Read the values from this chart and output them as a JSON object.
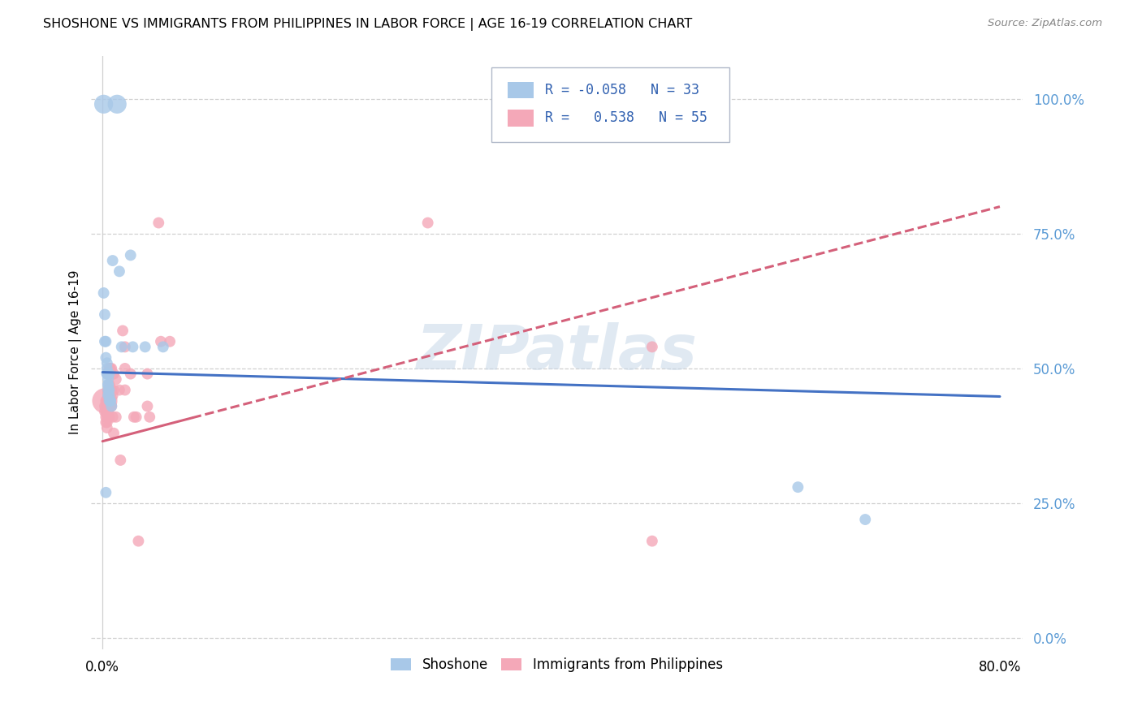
{
  "title": "SHOSHONE VS IMMIGRANTS FROM PHILIPPINES IN LABOR FORCE | AGE 16-19 CORRELATION CHART",
  "source": "Source: ZipAtlas.com",
  "ylabel": "In Labor Force | Age 16-19",
  "xlim": [
    -0.01,
    0.82
  ],
  "ylim": [
    -0.02,
    1.08
  ],
  "ytick_vals": [
    0.0,
    0.25,
    0.5,
    0.75,
    1.0
  ],
  "ytick_labels": [
    "0.0%",
    "25.0%",
    "50.0%",
    "75.0%",
    "100.0%"
  ],
  "xtick_vals": [
    0.0,
    0.1,
    0.2,
    0.3,
    0.4,
    0.5,
    0.6,
    0.7,
    0.8
  ],
  "xtick_labels": [
    "0.0%",
    "",
    "",
    "",
    "",
    "",
    "",
    "",
    "80.0%"
  ],
  "legend_R_blue": "-0.058",
  "legend_N_blue": "33",
  "legend_R_pink": "0.538",
  "legend_N_pink": "55",
  "blue_color": "#a8c8e8",
  "pink_color": "#f4a8b8",
  "trend_blue_color": "#4472c4",
  "trend_pink_color": "#d4607a",
  "blue_scatter": [
    [
      0.001,
      0.99
    ],
    [
      0.013,
      0.99
    ],
    [
      0.001,
      0.64
    ],
    [
      0.002,
      0.6
    ],
    [
      0.002,
      0.55
    ],
    [
      0.003,
      0.55
    ],
    [
      0.003,
      0.52
    ],
    [
      0.004,
      0.51
    ],
    [
      0.004,
      0.5
    ],
    [
      0.004,
      0.49
    ],
    [
      0.004,
      0.49
    ],
    [
      0.005,
      0.48
    ],
    [
      0.005,
      0.47
    ],
    [
      0.005,
      0.47
    ],
    [
      0.005,
      0.46
    ],
    [
      0.005,
      0.45
    ],
    [
      0.006,
      0.49
    ],
    [
      0.006,
      0.46
    ],
    [
      0.006,
      0.45
    ],
    [
      0.006,
      0.44
    ],
    [
      0.007,
      0.44
    ],
    [
      0.007,
      0.44
    ],
    [
      0.008,
      0.43
    ],
    [
      0.009,
      0.7
    ],
    [
      0.015,
      0.68
    ],
    [
      0.017,
      0.54
    ],
    [
      0.025,
      0.71
    ],
    [
      0.027,
      0.54
    ],
    [
      0.038,
      0.54
    ],
    [
      0.054,
      0.54
    ],
    [
      0.003,
      0.27
    ],
    [
      0.62,
      0.28
    ],
    [
      0.68,
      0.22
    ]
  ],
  "pink_scatter": [
    [
      0.002,
      0.44
    ],
    [
      0.002,
      0.43
    ],
    [
      0.002,
      0.42
    ],
    [
      0.003,
      0.44
    ],
    [
      0.003,
      0.43
    ],
    [
      0.003,
      0.42
    ],
    [
      0.003,
      0.41
    ],
    [
      0.003,
      0.4
    ],
    [
      0.004,
      0.44
    ],
    [
      0.004,
      0.43
    ],
    [
      0.004,
      0.42
    ],
    [
      0.004,
      0.41
    ],
    [
      0.004,
      0.4
    ],
    [
      0.004,
      0.39
    ],
    [
      0.005,
      0.49
    ],
    [
      0.005,
      0.46
    ],
    [
      0.005,
      0.44
    ],
    [
      0.005,
      0.42
    ],
    [
      0.006,
      0.5
    ],
    [
      0.006,
      0.47
    ],
    [
      0.006,
      0.45
    ],
    [
      0.006,
      0.43
    ],
    [
      0.006,
      0.41
    ],
    [
      0.007,
      0.5
    ],
    [
      0.007,
      0.46
    ],
    [
      0.007,
      0.43
    ],
    [
      0.008,
      0.5
    ],
    [
      0.008,
      0.46
    ],
    [
      0.008,
      0.43
    ],
    [
      0.009,
      0.45
    ],
    [
      0.009,
      0.41
    ],
    [
      0.01,
      0.49
    ],
    [
      0.01,
      0.46
    ],
    [
      0.01,
      0.38
    ],
    [
      0.012,
      0.48
    ],
    [
      0.012,
      0.41
    ],
    [
      0.015,
      0.46
    ],
    [
      0.016,
      0.33
    ],
    [
      0.018,
      0.57
    ],
    [
      0.02,
      0.54
    ],
    [
      0.02,
      0.5
    ],
    [
      0.02,
      0.46
    ],
    [
      0.025,
      0.49
    ],
    [
      0.028,
      0.41
    ],
    [
      0.03,
      0.41
    ],
    [
      0.032,
      0.18
    ],
    [
      0.04,
      0.49
    ],
    [
      0.04,
      0.43
    ],
    [
      0.042,
      0.41
    ],
    [
      0.05,
      0.77
    ],
    [
      0.052,
      0.55
    ],
    [
      0.06,
      0.55
    ],
    [
      0.29,
      0.77
    ],
    [
      0.49,
      0.54
    ],
    [
      0.49,
      0.18
    ]
  ],
  "blue_dot_sizes": [
    280,
    280,
    100,
    100,
    100,
    100,
    100,
    100,
    100,
    100,
    100,
    100,
    100,
    100,
    100,
    100,
    100,
    100,
    100,
    100,
    100,
    100,
    100,
    100,
    100,
    100,
    100,
    100,
    100,
    100,
    100,
    100,
    100
  ],
  "pink_dot_sizes": [
    500,
    100,
    100,
    100,
    100,
    100,
    100,
    100,
    100,
    100,
    100,
    100,
    100,
    100,
    100,
    100,
    100,
    100,
    100,
    100,
    100,
    100,
    100,
    100,
    100,
    100,
    100,
    100,
    100,
    100,
    100,
    100,
    100,
    100,
    100,
    100,
    100,
    100,
    100,
    100,
    100,
    100,
    100,
    100,
    100,
    100,
    100,
    100,
    100,
    100,
    100,
    100,
    100,
    100,
    100
  ],
  "blue_line": [
    0.0,
    0.493,
    0.8,
    0.448
  ],
  "pink_line": [
    0.0,
    0.365,
    0.8,
    0.8
  ],
  "pink_line_dashed_start": 0.08
}
